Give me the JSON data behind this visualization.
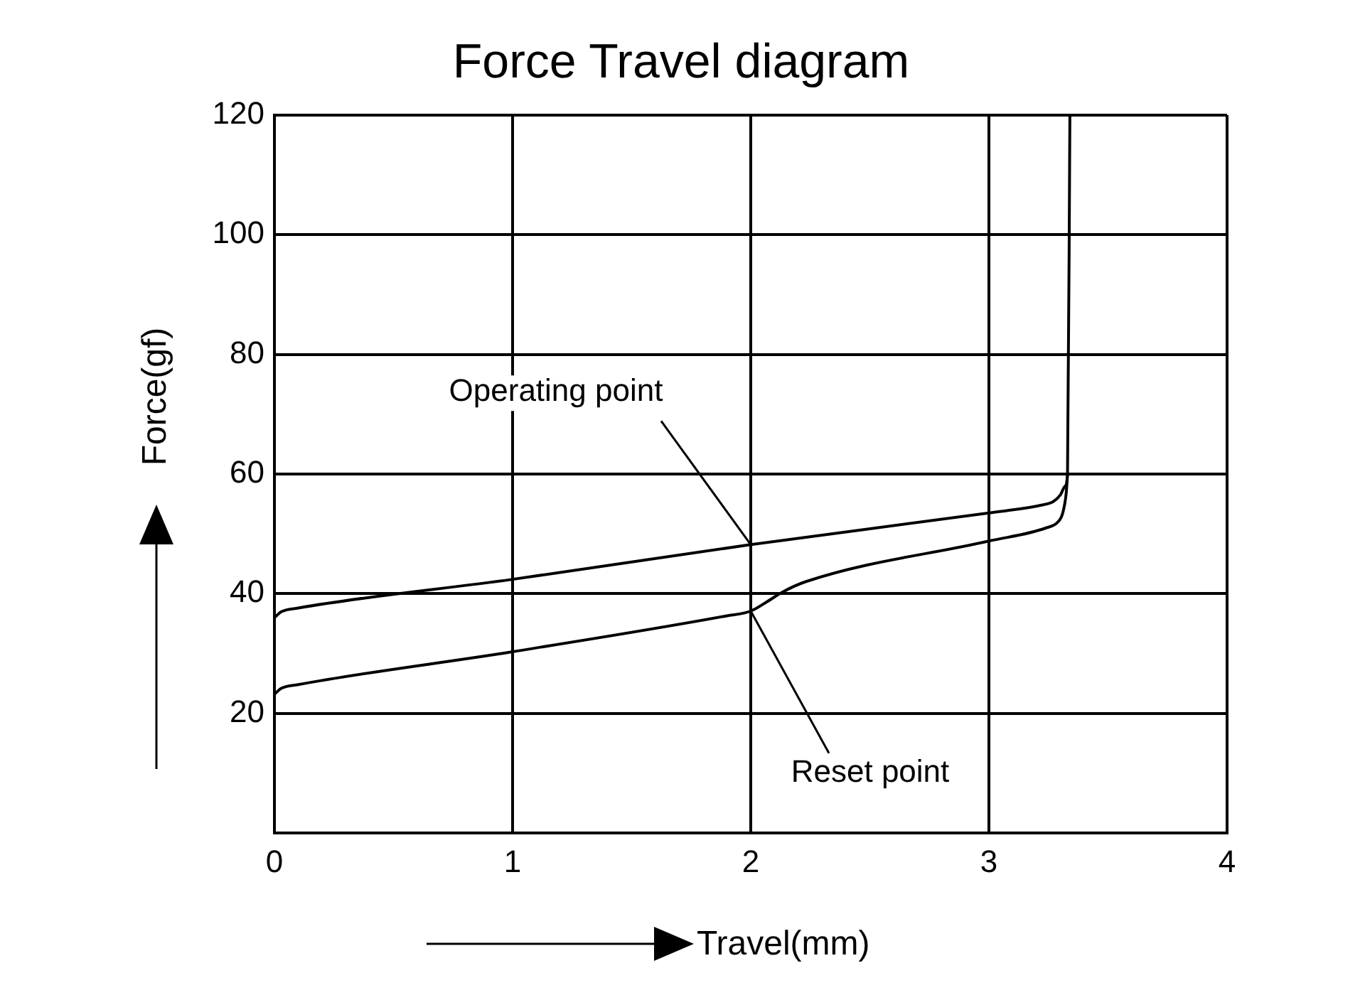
{
  "chart_data": {
    "type": "line",
    "title": "Force Travel diagram",
    "xlabel": "Travel(mm)",
    "ylabel": "Force(gf)",
    "series": [
      {
        "color": "#000000",
        "x": [
          0,
          0.03,
          0.1,
          1,
          2,
          3,
          3.22,
          3.27,
          3.3,
          3.32,
          3.33,
          3.34
        ],
        "values": [
          36,
          37,
          37.6,
          42.4,
          48.2,
          53.5,
          54.8,
          55.4,
          56.5,
          58,
          60,
          120
        ]
      },
      {
        "color": "#000000",
        "x": [
          0,
          0.03,
          0.1,
          1,
          1.9,
          2,
          2.07,
          2.13,
          2.23,
          3,
          3.24,
          3.29,
          3.31,
          3.325,
          3.33
        ],
        "values": [
          23.2,
          24.2,
          24.8,
          30.3,
          36.3,
          37.1,
          38.7,
          40.2,
          42,
          48.8,
          51,
          52,
          53.5,
          57,
          60
        ]
      }
    ],
    "xlim": [
      0,
      4
    ],
    "ylim": [
      0,
      120
    ],
    "xticks": [
      0,
      1,
      2,
      3,
      4
    ],
    "yticks": [
      20,
      40,
      60,
      80,
      100,
      120
    ],
    "grid": true,
    "legend": false,
    "marker": "none",
    "line_style": "solid",
    "annotations": [
      {
        "text": "Operating point",
        "x": 2,
        "y": 48.2
      },
      {
        "text": "Reset point",
        "x": 2,
        "y": 37.1
      }
    ]
  }
}
